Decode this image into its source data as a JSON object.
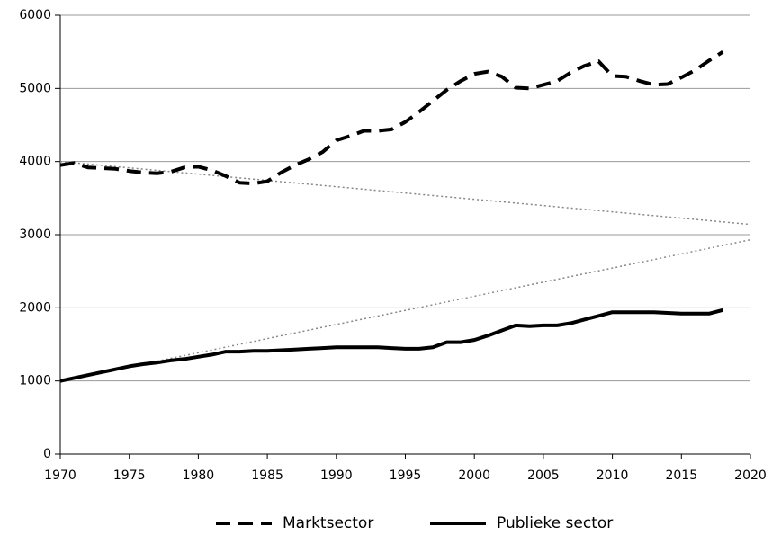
{
  "chart_data": {
    "type": "line",
    "x": [
      1970,
      1971,
      1972,
      1973,
      1974,
      1975,
      1976,
      1977,
      1978,
      1979,
      1980,
      1981,
      1982,
      1983,
      1984,
      1985,
      1986,
      1987,
      1988,
      1989,
      1990,
      1991,
      1992,
      1993,
      1994,
      1995,
      1996,
      1997,
      1998,
      1999,
      2000,
      2001,
      2002,
      2003,
      2004,
      2005,
      2006,
      2007,
      2008,
      2009,
      2010,
      2011,
      2012,
      2013,
      2014,
      2015,
      2016,
      2017,
      2018
    ],
    "series": [
      {
        "name": "Marktsector",
        "color": "#000000",
        "style": "dashed",
        "values": [
          3950,
          3980,
          3920,
          3910,
          3900,
          3870,
          3850,
          3840,
          3860,
          3920,
          3930,
          3880,
          3800,
          3710,
          3700,
          3730,
          3850,
          3950,
          4030,
          4130,
          4290,
          4350,
          4420,
          4420,
          4440,
          4540,
          4680,
          4830,
          4980,
          5100,
          5200,
          5230,
          5160,
          5010,
          5000,
          5050,
          5100,
          5220,
          5310,
          5370,
          5170,
          5160,
          5100,
          5050,
          5060,
          5150,
          5250,
          5380,
          5500
        ]
      },
      {
        "name": "Publieke sector",
        "color": "#000000",
        "style": "solid",
        "values": [
          1000,
          1040,
          1080,
          1120,
          1160,
          1200,
          1230,
          1250,
          1280,
          1300,
          1330,
          1360,
          1400,
          1400,
          1410,
          1410,
          1420,
          1430,
          1440,
          1450,
          1460,
          1460,
          1460,
          1460,
          1450,
          1440,
          1440,
          1460,
          1530,
          1530,
          1560,
          1620,
          1690,
          1760,
          1750,
          1760,
          1760,
          1790,
          1840,
          1890,
          1940,
          1940,
          1940,
          1940,
          1930,
          1920,
          1920,
          1920,
          1970
        ]
      }
    ],
    "trend_lines": [
      {
        "color": "#888888",
        "x": [
          1970,
          2020
        ],
        "values": [
          4000,
          3140
        ]
      },
      {
        "color": "#888888",
        "x": [
          1970,
          2020
        ],
        "values": [
          1000,
          2930
        ]
      }
    ],
    "xlim": [
      1970,
      2020
    ],
    "xticks": [
      1970,
      1975,
      1980,
      1985,
      1990,
      1995,
      2000,
      2005,
      2010,
      2015,
      2020
    ],
    "ylim": [
      0,
      6000
    ],
    "yticks": [
      0,
      1000,
      2000,
      3000,
      4000,
      5000,
      6000
    ],
    "grid": true,
    "legend": "bottom"
  }
}
